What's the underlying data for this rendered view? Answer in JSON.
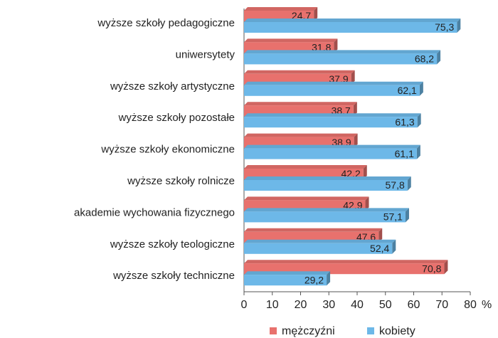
{
  "chart_data": {
    "type": "hbar",
    "categories": [
      "wyższe szkoły pedagogiczne",
      "uniwersytety",
      "wyższe szkoły artystyczne",
      "wyższe szkoły pozostałe",
      "wyższe szkoły ekonomiczne",
      "wyższe szkoły rolnicze",
      "akademie wychowania fizycznego",
      "wyższe szkoły teologiczne",
      "wyższe szkoły techniczne"
    ],
    "series": [
      {
        "name": "mężczyźni",
        "color": "#e8716d",
        "values": [
          24.7,
          31.8,
          37.9,
          38.7,
          38.9,
          42.2,
          42.9,
          47.6,
          70.8
        ],
        "value_labels": [
          "24,7",
          "31,8",
          "37,9",
          "38,7",
          "38,9",
          "42,2",
          "42,9",
          "47,6",
          "70,8"
        ]
      },
      {
        "name": "kobiety",
        "color": "#6db8e8",
        "values": [
          75.3,
          68.2,
          62.1,
          61.3,
          61.1,
          57.8,
          57.1,
          52.4,
          29.2
        ],
        "value_labels": [
          "75,3",
          "68,2",
          "62,1",
          "61,3",
          "61,1",
          "57,8",
          "57,1",
          "52,4",
          "29,2"
        ]
      }
    ],
    "xlim": [
      0,
      80
    ],
    "xticks": [
      0,
      10,
      20,
      30,
      40,
      50,
      60,
      70,
      80
    ],
    "xlabel": "%",
    "legend": "bottom"
  }
}
